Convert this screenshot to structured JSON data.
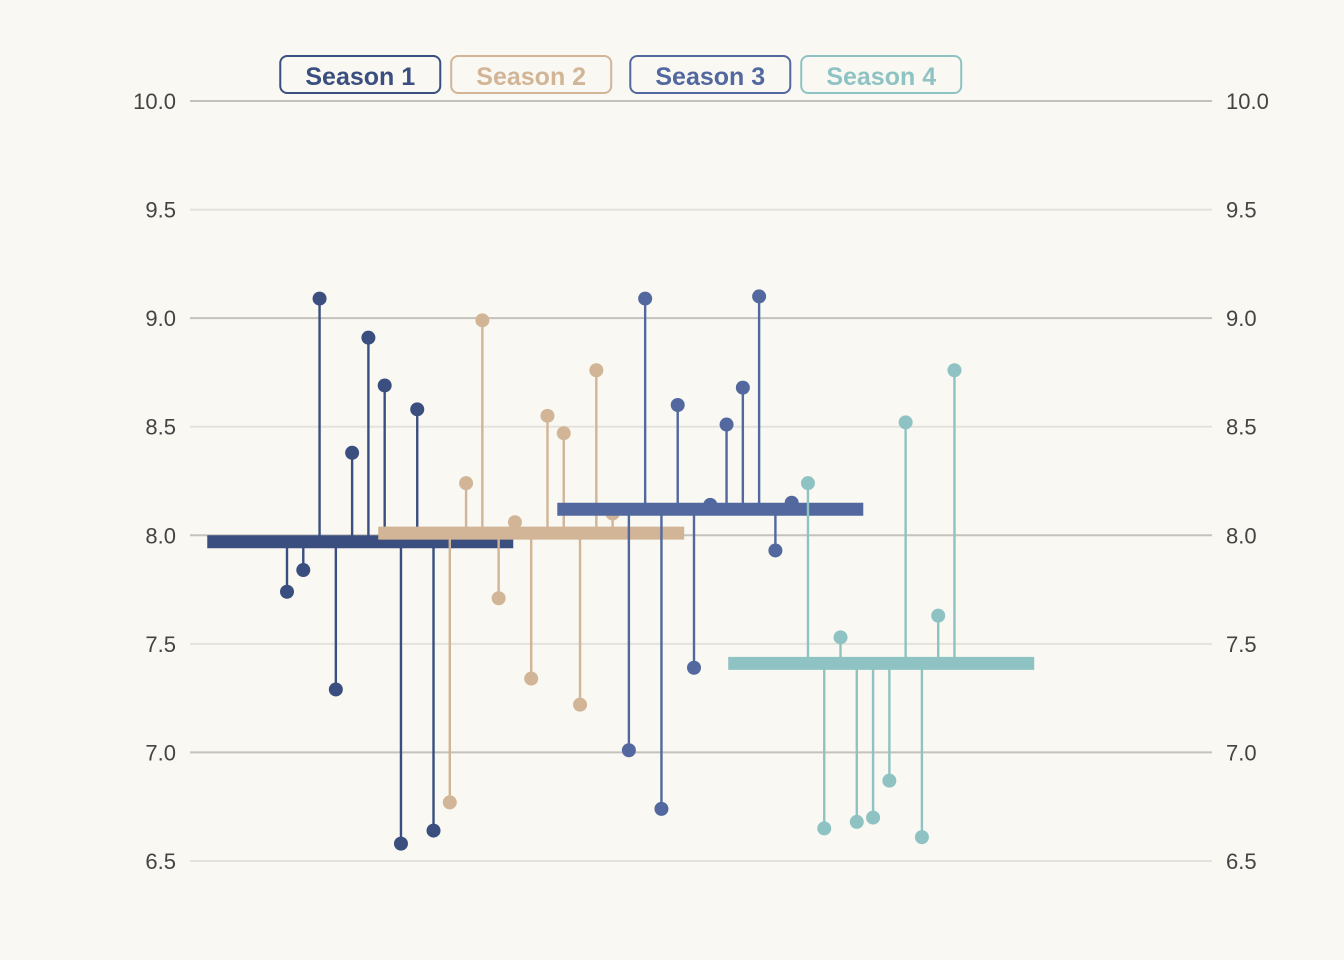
{
  "chart_data": {
    "type": "lollipop",
    "ylim": [
      6.5,
      10.0
    ],
    "y_ticks": [
      "10.0",
      "9.5",
      "9.0",
      "8.5",
      "8.0",
      "7.5",
      "7.0",
      "6.5"
    ],
    "grid": true,
    "x_range": [
      1,
      63
    ],
    "background": "#f9f8f2",
    "series": [
      {
        "name": "Season 1",
        "color": "#3a4e7f",
        "mean": 7.97,
        "x": [
          1,
          2,
          3,
          4,
          5,
          6,
          7,
          8,
          9,
          10
        ],
        "values": [
          7.74,
          7.84,
          9.09,
          7.29,
          8.38,
          8.91,
          8.69,
          6.58,
          8.58,
          6.64
        ]
      },
      {
        "name": "Season 2",
        "color": "#d1b596",
        "mean": 8.01,
        "x": [
          11,
          12,
          13,
          14,
          15,
          16,
          17,
          18,
          19,
          20,
          21
        ],
        "values": [
          6.77,
          8.24,
          8.99,
          7.71,
          8.06,
          7.34,
          8.55,
          8.47,
          7.22,
          8.76,
          8.1
        ]
      },
      {
        "name": "Season 3",
        "color": "#52689e",
        "mean": 8.12,
        "x": [
          22,
          23,
          24,
          25,
          26,
          27,
          28,
          29,
          30,
          31,
          32
        ],
        "values": [
          7.01,
          9.09,
          6.74,
          8.6,
          7.39,
          8.14,
          8.51,
          8.68,
          9.1,
          7.93,
          8.15
        ]
      },
      {
        "name": "Season 4",
        "color": "#8fc3c3",
        "mean": 7.41,
        "x": [
          33,
          34,
          35,
          36,
          37,
          38,
          39,
          40,
          41,
          42
        ],
        "values": [
          8.24,
          6.65,
          7.53,
          6.68,
          6.7,
          6.87,
          8.52,
          6.61,
          7.63,
          8.76
        ]
      }
    ]
  }
}
